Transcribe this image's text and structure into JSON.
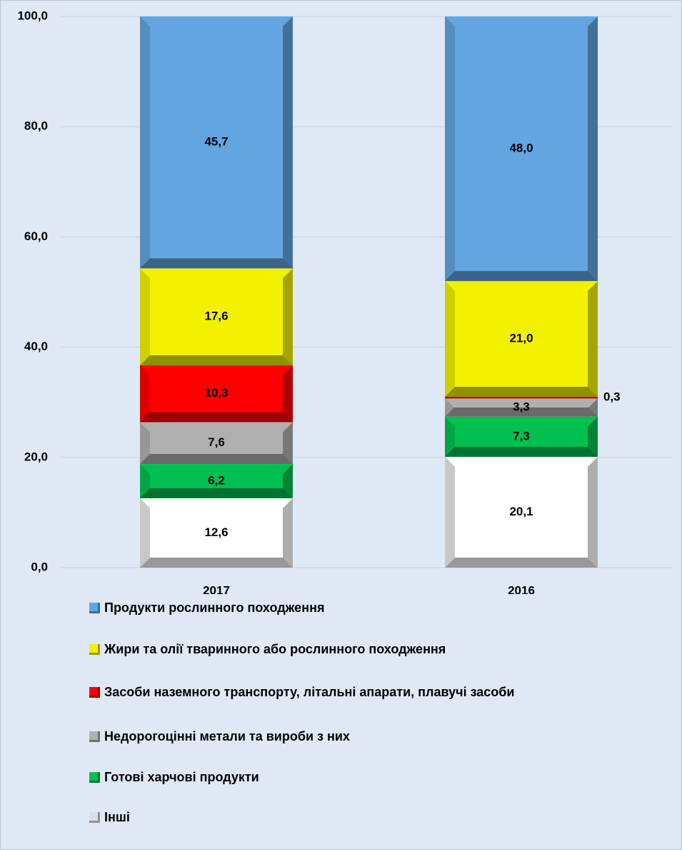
{
  "chart_data": {
    "type": "stacked_bar",
    "categories": [
      "2017",
      "2016"
    ],
    "series": [
      {
        "name": "Інші",
        "color": "#ffffff",
        "values": [
          12.6,
          20.1
        ],
        "value_labels": [
          "12,6",
          "20,1"
        ]
      },
      {
        "name": "Готові харчові продукти",
        "color": "#00c050",
        "values": [
          6.2,
          7.3
        ],
        "value_labels": [
          "6,2",
          "7,3"
        ]
      },
      {
        "name": "Недорогоцінні метали та вироби з них",
        "color": "#b0b0b0",
        "values": [
          7.6,
          3.3
        ],
        "value_labels": [
          "7,6",
          "3,3"
        ]
      },
      {
        "name": "Засоби наземного транспорту, літальні апарати, плавучі засоби",
        "color": "#ff0000",
        "values": [
          10.3,
          0.3
        ],
        "value_labels": [
          "10,3",
          "0,3"
        ]
      },
      {
        "name": "Жири та олії тваринного або рослинного походження",
        "color": "#f2f200",
        "values": [
          17.6,
          21.0
        ],
        "value_labels": [
          "17,6",
          "21,0"
        ]
      },
      {
        "name": "Продукти рослинного походження",
        "color": "#63a5e1",
        "values": [
          45.7,
          48.0
        ],
        "value_labels": [
          "45,7",
          "48,0"
        ]
      }
    ],
    "ylim": [
      0,
      100
    ],
    "yticks": [
      {
        "value": 0,
        "label": "0,0"
      },
      {
        "value": 20,
        "label": "20,0"
      },
      {
        "value": 40,
        "label": "40,0"
      },
      {
        "value": 60,
        "label": "60,0"
      },
      {
        "value": 80,
        "label": "80,0"
      },
      {
        "value": 100,
        "label": "100,0"
      }
    ],
    "grid": true
  }
}
